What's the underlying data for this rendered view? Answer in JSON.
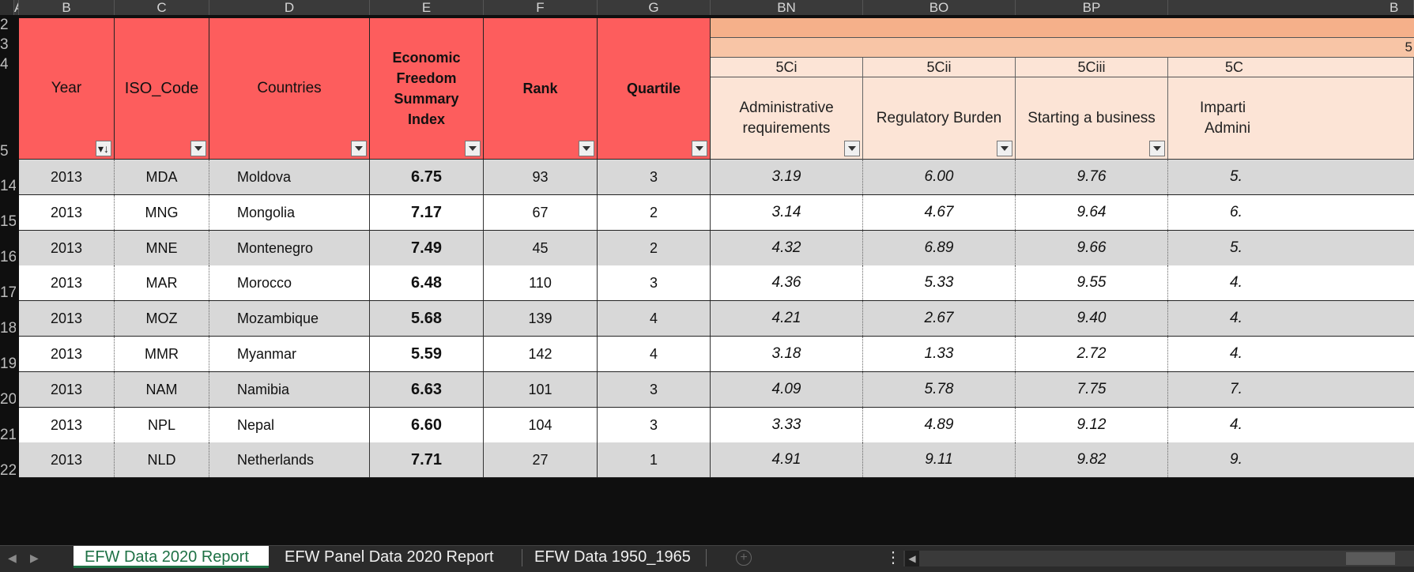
{
  "columns": {
    "A": "A",
    "B": "B",
    "C": "C",
    "D": "D",
    "E": "E",
    "F": "F",
    "G": "G",
    "BN": "BN",
    "BO": "BO",
    "BP": "BP",
    "BQ": "B"
  },
  "row_numbers": {
    "r2": "2",
    "r3": "3",
    "r4": "4",
    "r5": "5",
    "data": [
      "14",
      "15",
      "16",
      "17",
      "18",
      "19",
      "20",
      "21",
      "22"
    ]
  },
  "header": {
    "row3_partial": "5",
    "codes": {
      "bn": "5Ci",
      "bo": "5Cii",
      "bp": "5Ciii",
      "bq": "5C"
    },
    "year": "Year",
    "iso": "ISO_Code",
    "countries": "Countries",
    "index_line1": "Economic",
    "index_line2": "Freedom Summary",
    "index_line3": "Index",
    "rank": "Rank",
    "quartile": "Quartile",
    "admin_line1": "Administrative",
    "admin_line2": "requirements",
    "regulatory": "Regulatory Burden",
    "starting": "Starting a business",
    "impartial_line1": "Imparti",
    "impartial_line2": "Admini"
  },
  "rows": [
    {
      "year": "2013",
      "iso": "MDA",
      "country": "Moldova",
      "index": "6.75",
      "rank": "93",
      "quartile": "3",
      "bn": "3.19",
      "bo": "6.00",
      "bp": "9.76",
      "bq": "5."
    },
    {
      "year": "2013",
      "iso": "MNG",
      "country": "Mongolia",
      "index": "7.17",
      "rank": "67",
      "quartile": "2",
      "bn": "3.14",
      "bo": "4.67",
      "bp": "9.64",
      "bq": "6."
    },
    {
      "year": "2013",
      "iso": "MNE",
      "country": "Montenegro",
      "index": "7.49",
      "rank": "45",
      "quartile": "2",
      "bn": "4.32",
      "bo": "6.89",
      "bp": "9.66",
      "bq": "5."
    },
    {
      "year": "2013",
      "iso": "MAR",
      "country": "Morocco",
      "index": "6.48",
      "rank": "110",
      "quartile": "3",
      "bn": "4.36",
      "bo": "5.33",
      "bp": "9.55",
      "bq": "4."
    },
    {
      "year": "2013",
      "iso": "MOZ",
      "country": "Mozambique",
      "index": "5.68",
      "rank": "139",
      "quartile": "4",
      "bn": "4.21",
      "bo": "2.67",
      "bp": "9.40",
      "bq": "4."
    },
    {
      "year": "2013",
      "iso": "MMR",
      "country": "Myanmar",
      "index": "5.59",
      "rank": "142",
      "quartile": "4",
      "bn": "3.18",
      "bo": "1.33",
      "bp": "2.72",
      "bq": "4."
    },
    {
      "year": "2013",
      "iso": "NAM",
      "country": "Namibia",
      "index": "6.63",
      "rank": "101",
      "quartile": "3",
      "bn": "4.09",
      "bo": "5.78",
      "bp": "7.75",
      "bq": "7."
    },
    {
      "year": "2013",
      "iso": "NPL",
      "country": "Nepal",
      "index": "6.60",
      "rank": "104",
      "quartile": "3",
      "bn": "3.33",
      "bo": "4.89",
      "bp": "9.12",
      "bq": "4."
    },
    {
      "year": "2013",
      "iso": "NLD",
      "country": "Netherlands",
      "index": "7.71",
      "rank": "27",
      "quartile": "1",
      "bn": "4.91",
      "bo": "9.11",
      "bp": "9.82",
      "bq": "9."
    }
  ],
  "tabs": {
    "t1": "EFW Data 2020 Report",
    "t2": "EFW Panel Data 2020 Report",
    "t3": "EFW Data 1950_1965"
  },
  "icons": {
    "filter": "filter-dropdown-icon",
    "sort_filter": "sort-filter-icon",
    "add_sheet": "plus-circle-icon",
    "more": "more-options-icon"
  },
  "colors": {
    "header_red": "#fd5d5d",
    "peach_dark": "#f5b08a",
    "peach_light": "#fce4d6",
    "active_tab": "#1e7145"
  }
}
